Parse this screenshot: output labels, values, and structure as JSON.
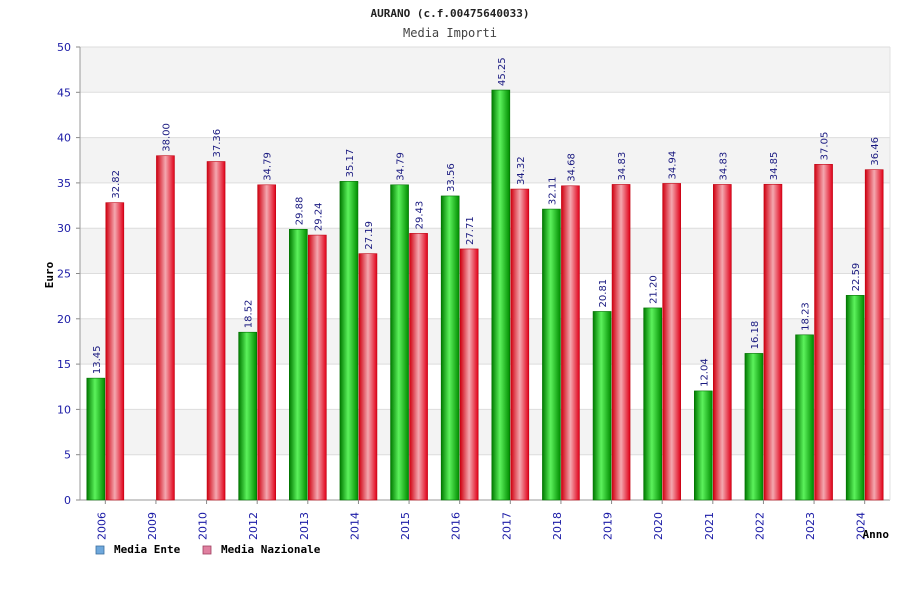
{
  "chart_data": {
    "type": "bar",
    "title": "AURANO (c.f.00475640033)",
    "subtitle": "Media Importi",
    "ylabel": "Euro",
    "xlabel": "Anno",
    "ylim": [
      0,
      50
    ],
    "yticks": [
      0,
      5,
      10,
      15,
      20,
      25,
      30,
      35,
      40,
      45,
      50
    ],
    "grid": true,
    "legend_position": "bottom-left",
    "categories": [
      "2006",
      "2009",
      "2010",
      "2012",
      "2013",
      "2014",
      "2015",
      "2016",
      "2017",
      "2018",
      "2019",
      "2020",
      "2021",
      "2022",
      "2023",
      "2024"
    ],
    "series": [
      {
        "name": "Media Ente",
        "color": "#00c000",
        "legend_color": "#6fa8dc",
        "values": [
          13.45,
          null,
          null,
          18.52,
          29.88,
          35.17,
          34.79,
          33.56,
          45.25,
          32.11,
          20.81,
          21.2,
          12.04,
          16.18,
          18.23,
          22.59
        ],
        "labels": [
          "13.45",
          "",
          "",
          "18.52",
          "29.88",
          "35.17",
          "34.79",
          "33.56",
          "45.25",
          "32.11",
          "20.81",
          "21.20",
          "12.04",
          "16.18",
          "18.23",
          "22.59"
        ]
      },
      {
        "name": "Media Nazionale",
        "color": "#e8101c",
        "legend_color": "#e080a0",
        "values": [
          32.82,
          38.0,
          37.36,
          34.79,
          29.24,
          27.19,
          29.43,
          27.71,
          34.32,
          34.68,
          34.83,
          34.94,
          34.83,
          34.85,
          37.05,
          36.46
        ],
        "labels": [
          "32.82",
          "38.00",
          "37.36",
          "34.79",
          "29.24",
          "27.19",
          "29.43",
          "27.71",
          "34.32",
          "34.68",
          "34.83",
          "34.94",
          "34.83",
          "34.85",
          "37.05",
          "36.46"
        ]
      }
    ]
  }
}
